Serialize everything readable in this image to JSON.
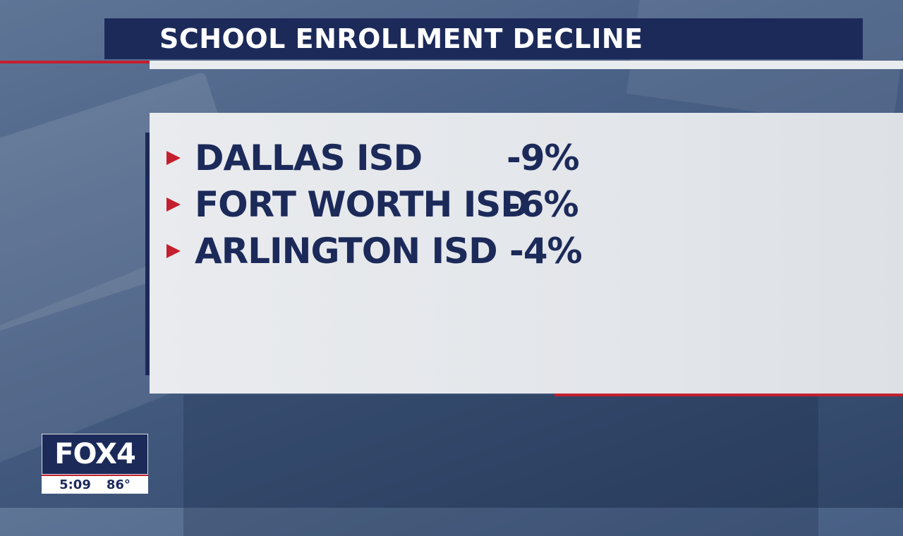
{
  "header": {
    "title": "SCHOOL ENROLLMENT DECLINE"
  },
  "rows": [
    {
      "name": "DALLAS ISD",
      "value": "-9%"
    },
    {
      "name": "FORT WORTH ISD",
      "value": "-6%"
    },
    {
      "name": "ARLINGTON ISD",
      "value": "-4%"
    }
  ],
  "bug": {
    "logo": "FOX4",
    "time": "5:09",
    "temp": "86°"
  },
  "colors": {
    "navy": "#1c2a5a",
    "red": "#c41f2f",
    "panel": "#e6e9ec"
  }
}
